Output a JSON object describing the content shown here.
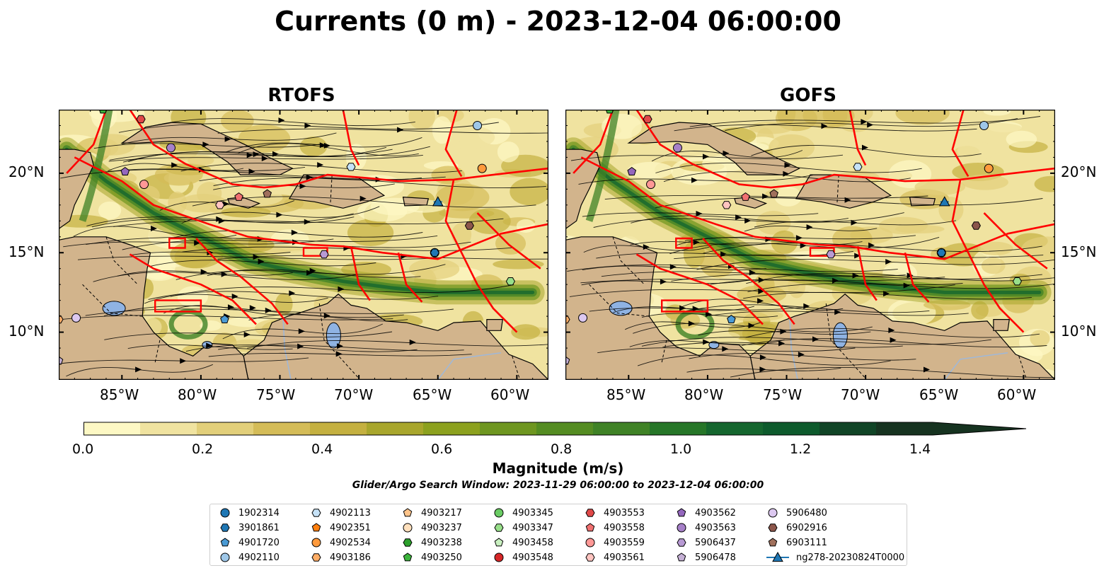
{
  "title": "Currents (0 m) - 2023-12-04 06:00:00",
  "panels": [
    {
      "name": "RTOFS"
    },
    {
      "name": "GOFS"
    }
  ],
  "axes": {
    "x_ticks": [
      "85°W",
      "80°W",
      "75°W",
      "70°W",
      "65°W",
      "60°W"
    ],
    "y_ticks": [
      "20°N",
      "15°N",
      "10°N"
    ],
    "lon_range": [
      -89,
      -58
    ],
    "lat_range": [
      7,
      24
    ]
  },
  "colorbar": {
    "label": "Magnitude (m/s)",
    "ticks": [
      "0.0",
      "0.2",
      "0.4",
      "0.6",
      "0.8",
      "1.0",
      "1.2",
      "1.4"
    ],
    "range": [
      0,
      1.5
    ],
    "colors": [
      "#fdf8c4",
      "#f0e3a0",
      "#e2cf7a",
      "#d4bc58",
      "#c4b040",
      "#a8a62c",
      "#8ca11e",
      "#6e9620",
      "#548c22",
      "#3f8226",
      "#267628",
      "#15662e",
      "#0d5a2c",
      "#104426",
      "#163320"
    ]
  },
  "search_window": "Glider/Argo Search Window: 2023-11-29 06:00:00 to 2023-12-04 06:00:00",
  "legend": [
    {
      "id": "1902314",
      "color": "#1f77b4",
      "marker": "circle"
    },
    {
      "id": "3901861",
      "color": "#1f77b4",
      "marker": "hexagon"
    },
    {
      "id": "4901720",
      "color": "#4a9ad4",
      "marker": "pentagon"
    },
    {
      "id": "4902110",
      "color": "#9ec7e8",
      "marker": "circle"
    },
    {
      "id": "4902113",
      "color": "#c6e2f7",
      "marker": "hexagon"
    },
    {
      "id": "4902351",
      "color": "#ff7f0e",
      "marker": "pentagon"
    },
    {
      "id": "4902534",
      "color": "#ff9a3c",
      "marker": "circle"
    },
    {
      "id": "4903186",
      "color": "#ffad66",
      "marker": "hexagon"
    },
    {
      "id": "4903217",
      "color": "#ffc48a",
      "marker": "pentagon"
    },
    {
      "id": "4903237",
      "color": "#ffe0bd",
      "marker": "circle"
    },
    {
      "id": "4903238",
      "color": "#2ca02c",
      "marker": "hexagon"
    },
    {
      "id": "4903250",
      "color": "#3cb43c",
      "marker": "pentagon"
    },
    {
      "id": "4903345",
      "color": "#6acc64",
      "marker": "circle"
    },
    {
      "id": "4903347",
      "color": "#98df8a",
      "marker": "hexagon"
    },
    {
      "id": "4903458",
      "color": "#c9f0c0",
      "marker": "pentagon"
    },
    {
      "id": "4903548",
      "color": "#d62728",
      "marker": "circle"
    },
    {
      "id": "4903553",
      "color": "#e04848",
      "marker": "hexagon"
    },
    {
      "id": "4903558",
      "color": "#f07070",
      "marker": "pentagon"
    },
    {
      "id": "4903559",
      "color": "#ff9896",
      "marker": "circle"
    },
    {
      "id": "4903561",
      "color": "#ffc4c0",
      "marker": "hexagon"
    },
    {
      "id": "4903562",
      "color": "#9467bd",
      "marker": "pentagon"
    },
    {
      "id": "4903563",
      "color": "#a680c8",
      "marker": "circle"
    },
    {
      "id": "5906437",
      "color": "#b89ad4",
      "marker": "hexagon"
    },
    {
      "id": "5906478",
      "color": "#c5b0d5",
      "marker": "pentagon"
    },
    {
      "id": "5906480",
      "color": "#dcc8f0",
      "marker": "circle"
    },
    {
      "id": "6902916",
      "color": "#8c564b",
      "marker": "hexagon"
    },
    {
      "id": "6903111",
      "color": "#a0705c",
      "marker": "pentagon"
    },
    {
      "id": "ng278-20230824T0000",
      "color": "#1f77b4",
      "marker": "triangle-line"
    }
  ],
  "floats": [
    {
      "id": "1902314",
      "lon": -65.2,
      "lat": 15.0
    },
    {
      "id": "3901861",
      "lon": -65.2,
      "lat": 15.0
    },
    {
      "id": "4901720",
      "lon": -78.5,
      "lat": 10.8
    },
    {
      "id": "4902110",
      "lon": -62.5,
      "lat": 23.0
    },
    {
      "id": "4902113",
      "lon": -70.5,
      "lat": 20.4
    },
    {
      "id": "4902534",
      "lon": -62.2,
      "lat": 20.3
    },
    {
      "id": "4903186",
      "lon": -89.0,
      "lat": 10.8
    },
    {
      "id": "4903347",
      "lon": -60.4,
      "lat": 13.2
    },
    {
      "id": "4903553",
      "lon": -83.8,
      "lat": 23.4
    },
    {
      "id": "4903558",
      "lon": -77.6,
      "lat": 18.5
    },
    {
      "id": "4903559",
      "lon": -83.6,
      "lat": 19.3
    },
    {
      "id": "4903561",
      "lon": -78.8,
      "lat": 18.0
    },
    {
      "id": "4903562",
      "lon": -84.8,
      "lat": 20.1
    },
    {
      "id": "4903563",
      "lon": -81.9,
      "lat": 21.6
    },
    {
      "id": "5906437",
      "lon": -72.2,
      "lat": 14.9
    },
    {
      "id": "5906478",
      "lon": -89.0,
      "lat": 8.2
    },
    {
      "id": "5906480",
      "lon": -87.9,
      "lat": 10.9
    },
    {
      "id": "6902916",
      "lon": -63.0,
      "lat": 16.7
    },
    {
      "id": "6903111",
      "lon": -75.8,
      "lat": 18.7
    },
    {
      "id": "4903250",
      "lon": -86.2,
      "lat": 24.0
    },
    {
      "id": "ng278-20230824T0000",
      "lon": -65.0,
      "lat": 18.2
    }
  ]
}
